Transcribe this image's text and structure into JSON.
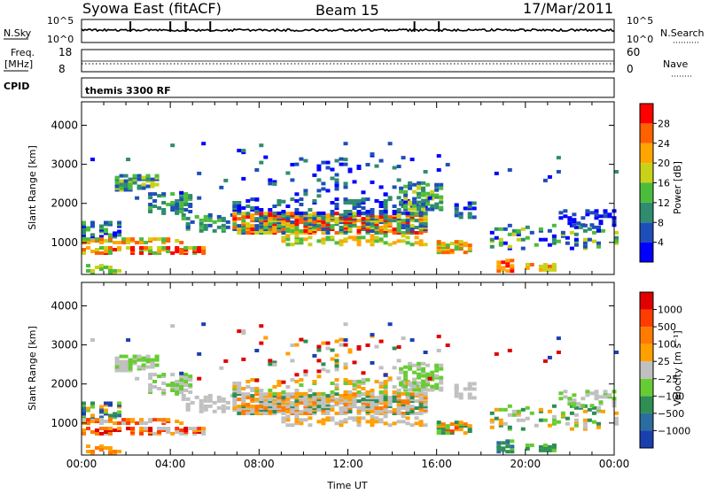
{
  "header": {
    "station": "Syowa East (fitACF)",
    "beam": "Beam 15",
    "date": "17/Mar/2011"
  },
  "noise_panel": {
    "left_label": "N.Sky",
    "right_label": "N.Search",
    "left_ticks": [
      "10^5",
      "10^0"
    ],
    "right_ticks": [
      "10^5",
      "10^0"
    ]
  },
  "freq_panel": {
    "left_label_line1": "Freq.",
    "left_label_line2": "[MHz]",
    "left_ticks": [
      "18",
      "8"
    ],
    "right_label": "Nave",
    "right_ticks": [
      "60",
      "0"
    ]
  },
  "cpid_panel": {
    "label": "CPID",
    "mode_text": "themis 3300 RF"
  },
  "chart_data": [
    {
      "type": "heatmap",
      "name": "power",
      "ylabel": "Slant Range [km]",
      "ylim": [
        180,
        4600
      ],
      "yticks": [
        "1000",
        "2000",
        "3000",
        "4000"
      ],
      "xlim_hours": [
        0,
        24
      ],
      "colorbar": {
        "label": "Power [dB]",
        "ticks": [
          "4",
          "8",
          "12",
          "16",
          "20",
          "24",
          "28"
        ],
        "colors": [
          "#0000ff",
          "#1e4fb8",
          "#2f8c6e",
          "#4cbc3c",
          "#c8d219",
          "#ffa500",
          "#ff6000",
          "#ff0000"
        ]
      }
    },
    {
      "type": "heatmap",
      "name": "velocity",
      "ylabel": "Slant Range [km]",
      "xlabel": "Time UT",
      "ylim": [
        180,
        4600
      ],
      "yticks": [
        "1000",
        "2000",
        "3000",
        "4000"
      ],
      "xticks": [
        "00:00",
        "04:00",
        "08:00",
        "12:00",
        "16:00",
        "20:00",
        "00:00"
      ],
      "colorbar": {
        "label": "Velocity [m s⁻¹]",
        "ticks": [
          "1000",
          "500",
          "100",
          "25",
          "−25",
          "−100",
          "−500",
          "−1000"
        ],
        "colors": [
          "#1a3faf",
          "#2b6d9e",
          "#2e8e54",
          "#66cc33",
          "#c0c0c0",
          "#ffa000",
          "#ff7a00",
          "#ff3c00",
          "#e00000"
        ]
      }
    }
  ]
}
